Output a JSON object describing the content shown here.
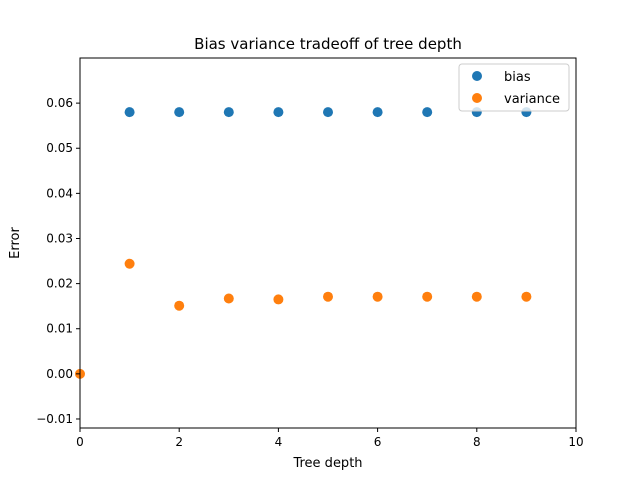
{
  "chart_data": {
    "type": "scatter",
    "title": "Bias variance tradeoff of tree depth",
    "xlabel": "Tree depth",
    "ylabel": "Error",
    "xlim": [
      0,
      10
    ],
    "ylim": [
      -0.012,
      0.07
    ],
    "xticks": [
      0,
      2,
      4,
      6,
      8,
      10
    ],
    "xtick_labels": [
      "0",
      "2",
      "4",
      "6",
      "8",
      "10"
    ],
    "yticks": [
      -0.01,
      0.0,
      0.01,
      0.02,
      0.03,
      0.04,
      0.05,
      0.06
    ],
    "ytick_labels": [
      "−0.01",
      "0.00",
      "0.01",
      "0.02",
      "0.03",
      "0.04",
      "0.05",
      "0.06"
    ],
    "grid": false,
    "legend_position": "top-right",
    "series": [
      {
        "name": "bias",
        "color": "#1f77b4",
        "points": [
          [
            1,
            0.058
          ],
          [
            2,
            0.058
          ],
          [
            3,
            0.058
          ],
          [
            4,
            0.058
          ],
          [
            5,
            0.058
          ],
          [
            6,
            0.058
          ],
          [
            7,
            0.058
          ],
          [
            8,
            0.058
          ],
          [
            9,
            0.058
          ]
        ]
      },
      {
        "name": "variance",
        "color": "#ff7f0e",
        "points": [
          [
            0,
            0.0
          ],
          [
            1,
            0.0244
          ],
          [
            2,
            0.0151
          ],
          [
            3,
            0.0167
          ],
          [
            4,
            0.0165
          ],
          [
            5,
            0.0171
          ],
          [
            6,
            0.0171
          ],
          [
            7,
            0.0171
          ],
          [
            8,
            0.0171
          ],
          [
            9,
            0.0171
          ]
        ]
      }
    ]
  }
}
